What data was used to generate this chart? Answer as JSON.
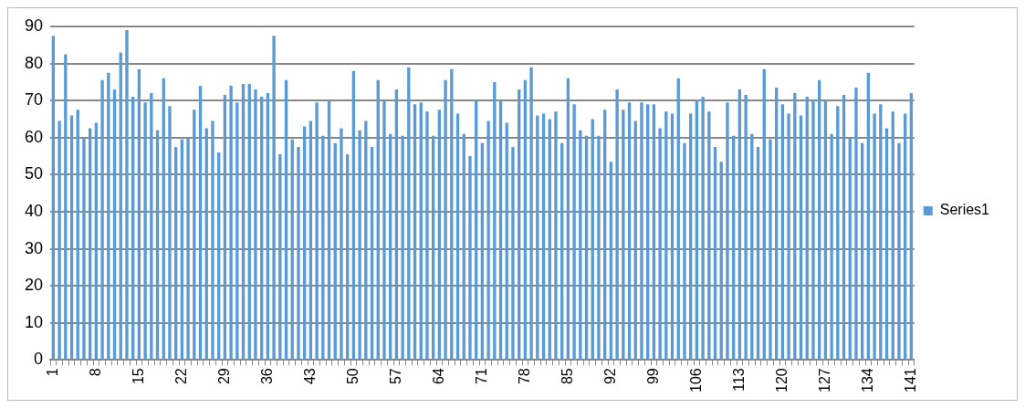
{
  "chart_data": {
    "type": "bar",
    "categories": [
      "1",
      null,
      null,
      null,
      null,
      null,
      null,
      "8",
      null,
      null,
      null,
      null,
      null,
      null,
      "15",
      null,
      null,
      null,
      null,
      null,
      null,
      "22",
      null,
      null,
      null,
      null,
      null,
      null,
      "29",
      null,
      null,
      null,
      null,
      null,
      null,
      "36",
      null,
      null,
      null,
      null,
      null,
      null,
      "43",
      null,
      null,
      null,
      null,
      null,
      null,
      "50",
      null,
      null,
      null,
      null,
      null,
      null,
      "57",
      null,
      null,
      null,
      null,
      null,
      null,
      "64",
      null,
      null,
      null,
      null,
      null,
      null,
      "71",
      null,
      null,
      null,
      null,
      null,
      null,
      "78",
      null,
      null,
      null,
      null,
      null,
      null,
      "85",
      null,
      null,
      null,
      null,
      null,
      null,
      "92",
      null,
      null,
      null,
      null,
      null,
      null,
      "99",
      null,
      null,
      null,
      null,
      null,
      null,
      "106",
      null,
      null,
      null,
      null,
      null,
      null,
      "113",
      null,
      null,
      null,
      null,
      null,
      null,
      "120",
      null,
      null,
      null,
      null,
      null,
      null,
      "127",
      null,
      null,
      null,
      null,
      null,
      null,
      "134",
      null,
      null,
      null,
      null,
      null,
      null,
      "141"
    ],
    "series": [
      {
        "name": "Series1",
        "color": "#5b9bd5",
        "values": [
          87.5,
          64.5,
          82.5,
          66,
          67.5,
          60,
          62.5,
          64,
          75.5,
          77.5,
          73,
          83,
          89,
          71,
          78.5,
          69.5,
          72,
          62,
          76,
          68.5,
          57.5,
          59.5,
          60,
          67.5,
          74,
          62.5,
          64.5,
          56,
          71.5,
          74,
          69.5,
          74.5,
          74.5,
          73,
          71,
          72,
          87.5,
          55.5,
          75.5,
          59.5,
          57.5,
          63,
          64.5,
          69.5,
          60.5,
          70,
          58.5,
          62.5,
          55.5,
          78,
          62,
          64.5,
          57.5,
          75.5,
          70,
          61,
          73,
          60.5,
          79,
          69,
          69.5,
          67,
          60.5,
          67.5,
          75.5,
          78.5,
          66.5,
          61,
          55,
          70,
          58.5,
          64.5,
          75,
          70,
          64,
          57.5,
          73,
          75.5,
          79,
          66,
          66.5,
          65,
          67,
          58.5,
          76,
          69,
          62,
          60.5,
          65,
          60.5,
          67.5,
          53.5,
          73,
          67.5,
          69.5,
          64.5,
          69.5,
          69,
          69,
          62.5,
          67,
          66.5,
          76,
          58.5,
          66.5,
          70,
          71,
          67,
          57.5,
          53.5,
          69.5,
          60.5,
          73,
          71.5,
          61,
          57.5,
          78.5,
          59.5,
          73.5,
          69,
          66.5,
          72,
          66,
          71,
          70,
          75.5,
          70,
          61,
          68.5,
          71.5,
          60,
          73.5,
          58.5,
          77.5,
          66.5,
          69,
          62.5,
          67,
          58.5,
          66.5,
          72
        ]
      }
    ],
    "ylim": [
      0,
      90
    ],
    "yticks": [
      0,
      10,
      20,
      30,
      40,
      50,
      60,
      70,
      80,
      90
    ],
    "grid": "y",
    "legend": "right"
  }
}
